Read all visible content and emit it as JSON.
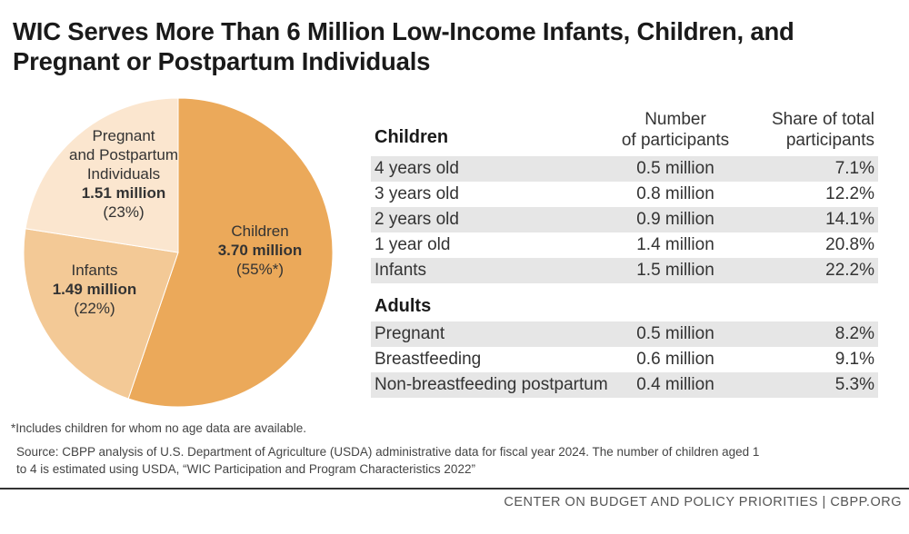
{
  "title_lines": [
    "WIC Serves More Than 6 Million Low-Income Infants, Children, and",
    "Pregnant or Postpartum Individuals"
  ],
  "chart_data": {
    "type": "pie",
    "slices": [
      {
        "name": "Children",
        "value_label": "3.70 million",
        "pct_label": "(55%*)",
        "value": 3.7,
        "color": "#eba95a"
      },
      {
        "name": "Infants",
        "value_label": "1.49 million",
        "pct_label": "(22%)",
        "value": 1.49,
        "color": "#f3c996"
      },
      {
        "name": "Pregnant and Postpartum Individuals",
        "name_lines": [
          "Pregnant",
          "and Postpartum",
          "Individuals"
        ],
        "value_label": "1.51 million",
        "pct_label": "(23%)",
        "value": 1.51,
        "color": "#fbe6cf"
      }
    ]
  },
  "table": {
    "children_header": "Children",
    "col2_header_lines": [
      "Number",
      "of participants"
    ],
    "col3_header_lines": [
      "Share of total",
      "participants"
    ],
    "children_rows": [
      {
        "label": "4 years old",
        "number": "0.5 million",
        "share": "7.1%"
      },
      {
        "label": "3 years old",
        "number": "0.8 million",
        "share": "12.2%"
      },
      {
        "label": "2 years old",
        "number": "0.9 million",
        "share": "14.1%"
      },
      {
        "label": "1 year old",
        "number": "1.4 million",
        "share": "20.8%"
      },
      {
        "label": "Infants",
        "number": "1.5 million",
        "share": "22.2%"
      }
    ],
    "adults_header": "Adults",
    "adult_rows": [
      {
        "label": "Pregnant",
        "number": "0.5 million",
        "share": "8.2%"
      },
      {
        "label": "Breastfeeding",
        "number": "0.6 million",
        "share": "9.1%"
      },
      {
        "label": "Non-breastfeeding postpartum",
        "number": "0.4 million",
        "share": "5.3%"
      }
    ]
  },
  "footnote": "*Includes children for whom no age data are available.",
  "source_lines": [
    "Source: CBPP analysis of U.S. Department of Agriculture (USDA) administrative data for fiscal year 2024. The number of children aged 1",
    "to 4 is estimated using USDA, “WIC Participation and Program Characteristics 2022”"
  ],
  "footer": "CENTER ON BUDGET AND POLICY PRIORITIES | CBPP.ORG"
}
